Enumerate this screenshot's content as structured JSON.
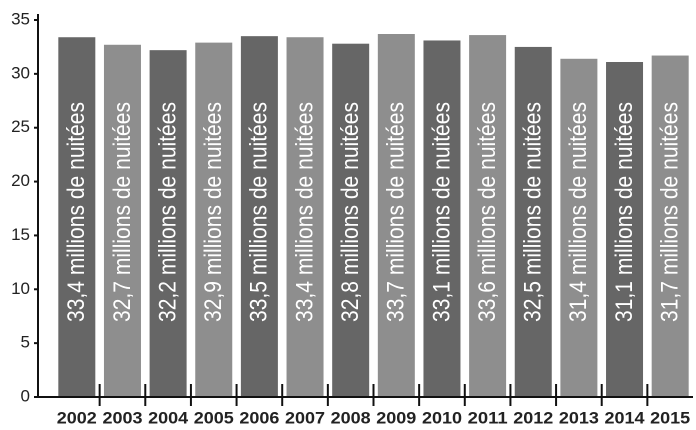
{
  "chart_data": {
    "type": "bar",
    "categories": [
      "2002",
      "2003",
      "2004",
      "2005",
      "2006",
      "2007",
      "2008",
      "2009",
      "2010",
      "2011",
      "2012",
      "2013",
      "2014",
      "2015"
    ],
    "values": [
      33.4,
      32.7,
      32.2,
      32.9,
      33.5,
      33.4,
      32.8,
      33.7,
      33.1,
      33.6,
      32.5,
      31.4,
      31.1,
      31.7
    ],
    "value_labels": [
      "33,4 millions de nuitées",
      "32,7 millions de nuitées",
      "32,2 millions de nuitées",
      "32,9 millions de nuitées",
      "33,5 millions de nuitées",
      "33,4 millions de nuitées",
      "32,8 millions de nuitées",
      "33,7 millions de nuitées",
      "33,1 millions de nuitées",
      "33,6 millions de nuitées",
      "32,5 millions de nuitées",
      "31,4 millions de nuitées",
      "31,1 millions de nuitées",
      "31,7 millions de nuitées"
    ],
    "colors": [
      "#666666",
      "#8e8e8e",
      "#666666",
      "#8e8e8e",
      "#666666",
      "#8e8e8e",
      "#666666",
      "#8e8e8e",
      "#666666",
      "#8e8e8e",
      "#666666",
      "#8e8e8e",
      "#666666",
      "#8e8e8e"
    ],
    "ylim": [
      0,
      35
    ],
    "yticks": [
      0,
      5,
      10,
      15,
      20,
      25,
      30,
      35
    ],
    "grid": false
  }
}
